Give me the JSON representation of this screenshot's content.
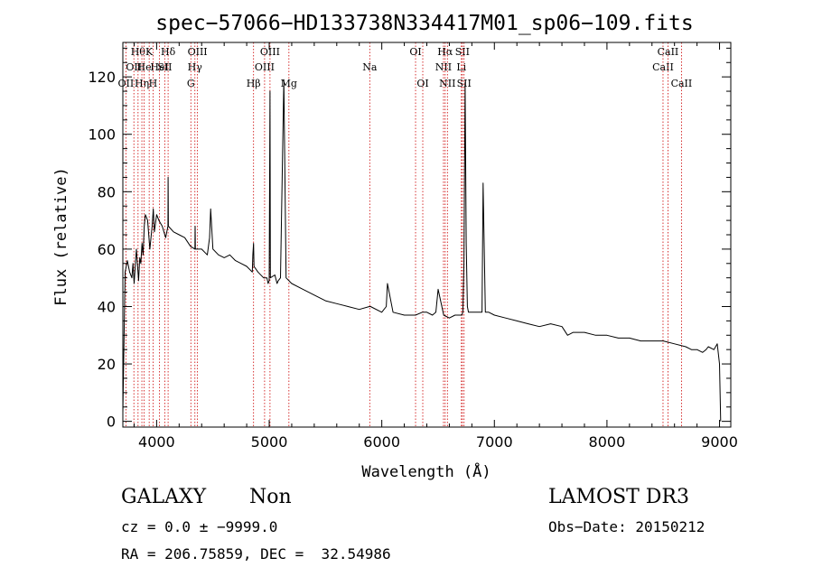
{
  "chart_data": {
    "type": "line",
    "title": "spec−57066−HD133738N334417M01_sp06−109.fits",
    "xlabel": "Wavelength (Å)",
    "ylabel": "Flux (relative)",
    "xlim": [
      3700,
      9100
    ],
    "ylim": [
      -2,
      132
    ],
    "x_ticks": [
      4000,
      5000,
      6000,
      7000,
      8000,
      9000
    ],
    "y_ticks": [
      0,
      20,
      40,
      60,
      80,
      100,
      120
    ],
    "grid": false,
    "series": [
      {
        "color": "#000000",
        "x": [
          3700,
          3720,
          3740,
          3760,
          3780,
          3790,
          3800,
          3810,
          3820,
          3840,
          3850,
          3860,
          3870,
          3880,
          3890,
          3900,
          3920,
          3940,
          3960,
          3970,
          3980,
          4000,
          4020,
          4050,
          4080,
          4100,
          4102,
          4104,
          4150,
          4200,
          4250,
          4300,
          4340,
          4342,
          4344,
          4400,
          4450,
          4470,
          4480,
          4500,
          4550,
          4600,
          4650,
          4700,
          4750,
          4800,
          4850,
          4855,
          4861,
          4865,
          4900,
          4950,
          4980,
          4990,
          5000,
          5007,
          5010,
          5050,
          5070,
          5080,
          5100,
          5130,
          5150,
          5200,
          5300,
          5400,
          5500,
          5600,
          5700,
          5800,
          5890,
          5900,
          6000,
          6040,
          6050,
          6100,
          6200,
          6300,
          6360,
          6400,
          6450,
          6480,
          6500,
          6550,
          6600,
          6650,
          6700,
          6710,
          6720,
          6730,
          6740,
          6750,
          6760,
          6770,
          6780,
          6800,
          6850,
          6890,
          6900,
          6920,
          6950,
          7000,
          7100,
          7200,
          7300,
          7400,
          7500,
          7600,
          7650,
          7700,
          7800,
          7900,
          8000,
          8100,
          8200,
          8300,
          8400,
          8500,
          8600,
          8700,
          8750,
          8800,
          8850,
          8880,
          8900,
          8950,
          8980,
          9000,
          9010
        ],
        "y": [
          3,
          52,
          56,
          52,
          50,
          55,
          48,
          54,
          60,
          49,
          57,
          55,
          62,
          58,
          68,
          72,
          70,
          60,
          68,
          74,
          66,
          72,
          70,
          68,
          64,
          68,
          85,
          68,
          66,
          65,
          64,
          61,
          60,
          68,
          60,
          60,
          58,
          64,
          74,
          60,
          58,
          57,
          58,
          56,
          55,
          54,
          52,
          58,
          62,
          54,
          52,
          50,
          50,
          48,
          49,
          115,
          50,
          51,
          48,
          49,
          50,
          119,
          50,
          48,
          46,
          44,
          42,
          41,
          40,
          39,
          40,
          40,
          38,
          40,
          48,
          38,
          37,
          37,
          38,
          38,
          37,
          38,
          46,
          37,
          36,
          37,
          37,
          37,
          38,
          55,
          118,
          62,
          40,
          38,
          38,
          38,
          38,
          38,
          83,
          38,
          38,
          37,
          36,
          35,
          34,
          33,
          34,
          33,
          30,
          31,
          31,
          30,
          30,
          29,
          29,
          28,
          28,
          28,
          27,
          26,
          25,
          25,
          24,
          25,
          26,
          25,
          27,
          20,
          0
        ]
      }
    ],
    "line_markers": [
      {
        "wavelength": 3727,
        "label": "OII",
        "row": 2
      },
      {
        "wavelength": 3798,
        "label": "OII",
        "row": 1
      },
      {
        "wavelength": 3835,
        "label": "Hθ",
        "row": 0
      },
      {
        "wavelength": 3869,
        "label": "Hη",
        "row": 2
      },
      {
        "wavelength": 3889,
        "label": "He",
        "row": 1
      },
      {
        "wavelength": 3934,
        "label": "K",
        "row": 0
      },
      {
        "wavelength": 3968,
        "label": "H",
        "row": 2
      },
      {
        "wavelength": 4026,
        "label": "HeI",
        "row": 1
      },
      {
        "wavelength": 4102,
        "label": "Hδ",
        "row": 0
      },
      {
        "wavelength": 4072,
        "label": "SII",
        "row": 1
      },
      {
        "wavelength": 4340,
        "label": "Hγ",
        "row": 1
      },
      {
        "wavelength": 4363,
        "label": "OIII",
        "row": 0
      },
      {
        "wavelength": 4304,
        "label": "G",
        "row": 2
      },
      {
        "wavelength": 4861,
        "label": "Hβ",
        "row": 2
      },
      {
        "wavelength": 4959,
        "label": "OIII",
        "row": 1
      },
      {
        "wavelength": 5007,
        "label": "OIII",
        "row": 0
      },
      {
        "wavelength": 5175,
        "label": "Mg",
        "row": 2
      },
      {
        "wavelength": 5893,
        "label": "Na",
        "row": 1
      },
      {
        "wavelength": 6300,
        "label": "OI",
        "row": 0
      },
      {
        "wavelength": 6364,
        "label": "OI",
        "row": 2
      },
      {
        "wavelength": 6548,
        "label": "NII",
        "row": 1
      },
      {
        "wavelength": 6563,
        "label": "Hα",
        "row": 0
      },
      {
        "wavelength": 6583,
        "label": "NII",
        "row": 2
      },
      {
        "wavelength": 6707,
        "label": "Li",
        "row": 1
      },
      {
        "wavelength": 6716,
        "label": "SII",
        "row": 0
      },
      {
        "wavelength": 6731,
        "label": "SII",
        "row": 2
      },
      {
        "wavelength": 8498,
        "label": "CaII",
        "row": 1
      },
      {
        "wavelength": 8542,
        "label": "CaII",
        "row": 0
      },
      {
        "wavelength": 8662,
        "label": "CaII",
        "row": 2
      }
    ],
    "marker_color": "#cc0000"
  },
  "info": {
    "object_class": "GALAXY",
    "subclass": "Non",
    "survey": "LAMOST DR3",
    "cz_line": "cz = 0.0 ± −9999.0",
    "obs_date": "Obs−Date: 20150212",
    "coords": "RA = 206.75859, DEC =  32.54986"
  }
}
